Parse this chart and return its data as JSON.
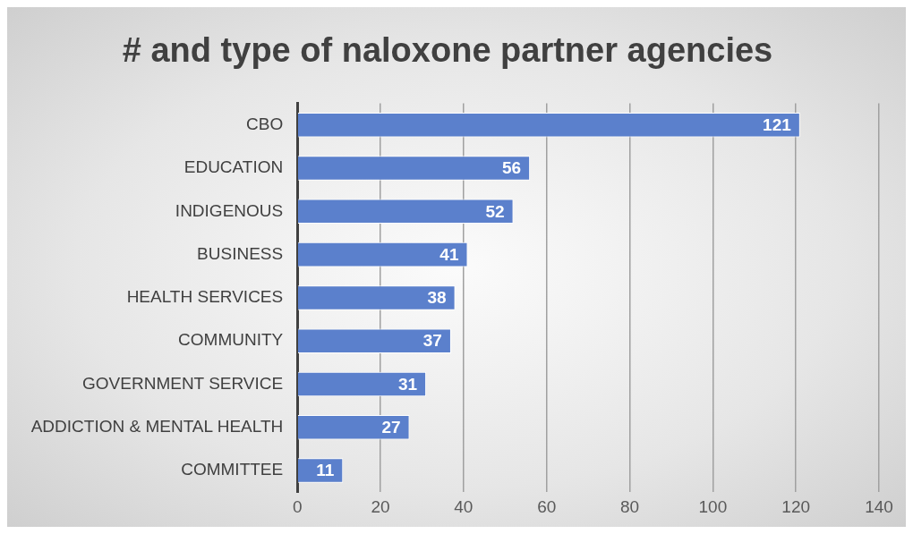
{
  "chart_data": {
    "type": "bar",
    "orientation": "horizontal",
    "title": "# and type of naloxone partner agencies",
    "categories": [
      "CBO",
      "EDUCATION",
      "INDIGENOUS",
      "BUSINESS",
      "HEALTH SERVICES",
      "COMMUNITY",
      "GOVERNMENT SERVICE",
      "ADDICTION & MENTAL HEALTH",
      "COMMITTEE"
    ],
    "values": [
      121,
      56,
      52,
      41,
      38,
      37,
      31,
      27,
      11
    ],
    "color": "#5b80cc",
    "xlim": [
      0,
      140
    ],
    "xticks": [
      0,
      20,
      40,
      60,
      80,
      100,
      120,
      140
    ],
    "grid": "x",
    "data_labels": true,
    "legend": false
  }
}
